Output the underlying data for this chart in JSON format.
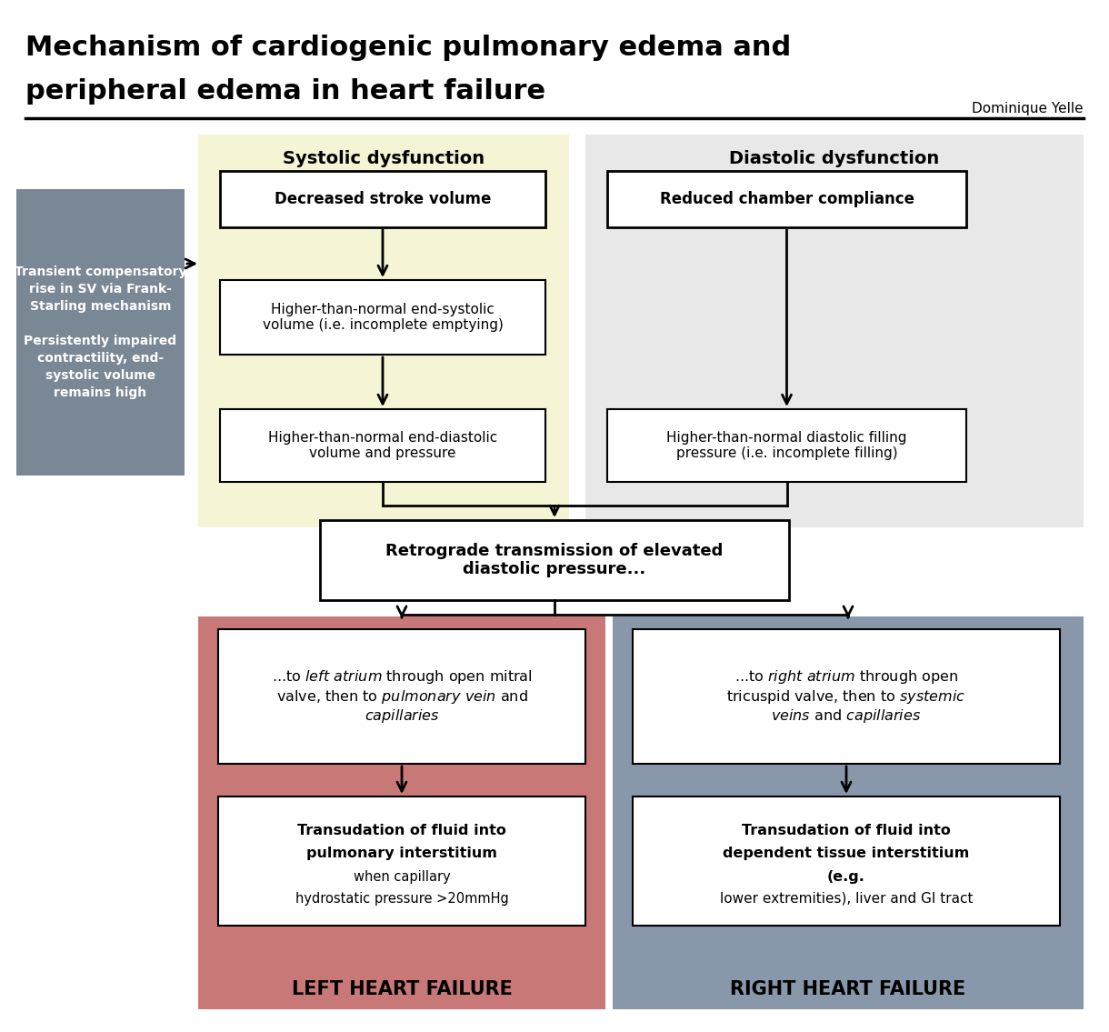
{
  "title_line1": "Mechanism of cardiogenic pulmonary edema and",
  "title_line2": "peripheral edema in heart failure",
  "author": "Dominique Yelle",
  "bg_color": "#ffffff",
  "systolic_bg": "#f5f5d5",
  "diastolic_bg": "#e8e8e8",
  "left_heart_bg": "#c97878",
  "right_heart_bg": "#8898aa",
  "gray_box_bg": "#7a8795",
  "gray_text": "Transient compensatory\nrise in SV via Frank-\nStarling mechanism\n\nPersistently impaired\ncontractility, end-\nsystolic volume\nremains high",
  "systolic_title": "Systolic dysfunction",
  "diastolic_title": "Diastolic dysfunction",
  "box_s1": "Decreased stroke volume",
  "box_s2": "Higher-than-normal end-systolic\nvolume (i.e. incomplete emptying)",
  "box_s3": "Higher-than-normal end-diastolic\nvolume and pressure",
  "box_d1": "Reduced chamber compliance",
  "box_d2": "Higher-than-normal diastolic filling\npressure (i.e. incomplete filling)",
  "center_box": "Retrograde transmission of elevated\ndiastolic pressure...",
  "left_label": "LEFT HEART FAILURE",
  "right_label": "RIGHT HEART FAILURE"
}
